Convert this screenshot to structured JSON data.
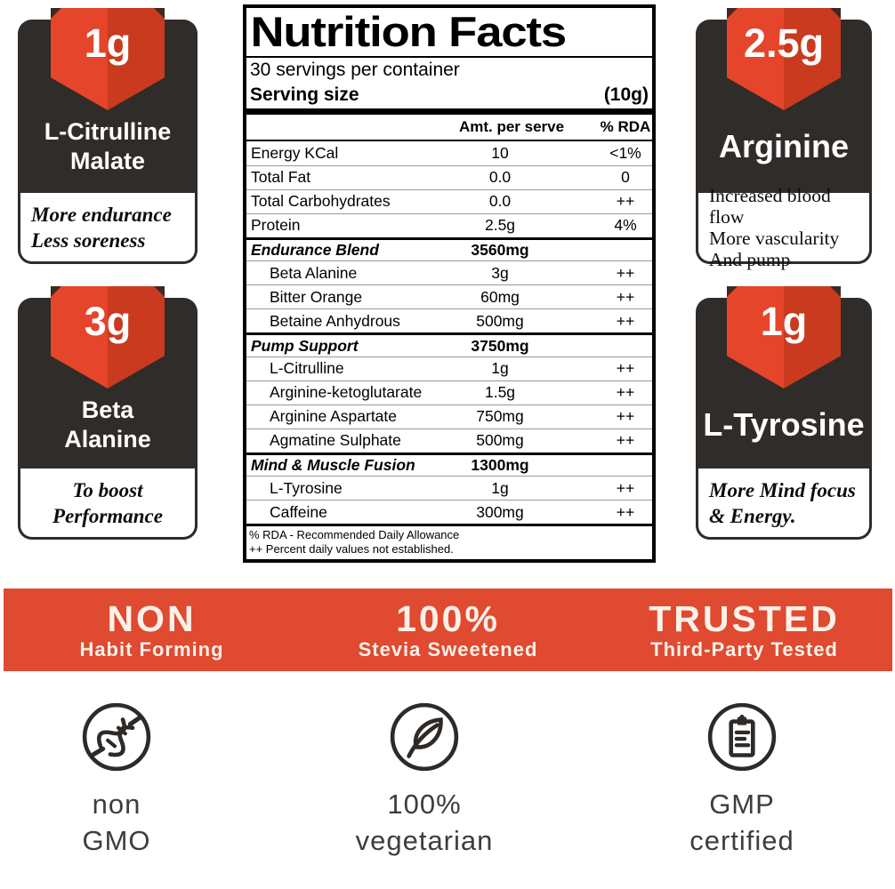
{
  "label": {
    "title": "Nutrition Facts",
    "servings": "30 servings per container",
    "serving_size_label": "Serving size",
    "serving_size_value": "(10g)",
    "col_amount": "Amt. per serve",
    "col_rda": "% RDA",
    "rows": [
      {
        "type": "nutrient",
        "name": "Energy KCal",
        "amount": "10",
        "rda": "<1%"
      },
      {
        "type": "nutrient",
        "name": "Total Fat",
        "amount": "0.0",
        "rda": "0"
      },
      {
        "type": "nutrient",
        "name": "Total Carbohydrates",
        "amount": "0.0",
        "rda": "++"
      },
      {
        "type": "nutrient",
        "name": "Protein",
        "amount": "2.5g",
        "rda": "4%"
      },
      {
        "type": "section",
        "name": "Endurance Blend",
        "amount": "3560mg",
        "rda": ""
      },
      {
        "type": "sub",
        "name": "Beta Alanine",
        "amount": "3g",
        "rda": "++"
      },
      {
        "type": "sub",
        "name": "Bitter Orange",
        "amount": "60mg",
        "rda": "++"
      },
      {
        "type": "sub",
        "name": "Betaine Anhydrous",
        "amount": "500mg",
        "rda": "++"
      },
      {
        "type": "section",
        "name": "Pump Support",
        "amount": "3750mg",
        "rda": ""
      },
      {
        "type": "sub",
        "name": "L-Citrulline",
        "amount": "1g",
        "rda": "++"
      },
      {
        "type": "sub",
        "name": "Arginine-ketoglutarate",
        "amount": "1.5g",
        "rda": "++"
      },
      {
        "type": "sub",
        "name": "Arginine Aspartate",
        "amount": "750mg",
        "rda": "++"
      },
      {
        "type": "sub",
        "name": "Agmatine Sulphate",
        "amount": "500mg",
        "rda": "++"
      },
      {
        "type": "section",
        "name": "Mind & Muscle Fusion",
        "amount": "1300mg",
        "rda": ""
      },
      {
        "type": "sub",
        "name": "L-Tyrosine",
        "amount": "1g",
        "rda": "++"
      },
      {
        "type": "sub",
        "name": "Caffeine",
        "amount": "300mg",
        "rda": "++"
      }
    ],
    "footnotes": [
      "% RDA - Recommended Daily Allowance",
      "++ Percent daily values not established."
    ]
  },
  "badges": [
    {
      "amount": "1g",
      "name_lines": [
        "L-Citrulline",
        "Malate"
      ],
      "desc_lines": [
        "More endurance",
        "Less soreness"
      ],
      "desc_style": "bold-italic",
      "desc_align": "left"
    },
    {
      "amount": "3g",
      "name_lines": [
        "Beta",
        "Alanine"
      ],
      "desc_lines": [
        "To boost",
        "Performance"
      ],
      "desc_style": "bold-italic",
      "desc_align": "center"
    },
    {
      "amount": "2.5g",
      "name_lines": [
        "Arginine"
      ],
      "desc_lines": [
        "Increased blood flow",
        "More vascularity",
        "And pump"
      ],
      "desc_style": "regular",
      "desc_align": "left"
    },
    {
      "amount": "1g",
      "name_lines": [
        "L-Tyrosine"
      ],
      "desc_lines": [
        "More Mind focus",
        "& Energy."
      ],
      "desc_style": "bold-italic",
      "desc_align": "left"
    }
  ],
  "banner": {
    "background": "#DF4A30",
    "items": [
      {
        "title": "NON",
        "subtitle": "Habit Forming"
      },
      {
        "title": "100%",
        "subtitle": "Stevia Sweetened"
      },
      {
        "title": "TRUSTED",
        "subtitle": "Third-Party Tested"
      }
    ]
  },
  "features": [
    {
      "icon": "non-gmo-dna-icon",
      "lines": [
        "non",
        "GMO"
      ]
    },
    {
      "icon": "vegetarian-leaf-icon",
      "lines": [
        "100%",
        "vegetarian"
      ]
    },
    {
      "icon": "gmp-clipboard-icon",
      "lines": [
        "GMP",
        "certified"
      ]
    }
  ],
  "colors": {
    "ribbon_red": "#E5452A",
    "ribbon_red_dark": "#C93A1F",
    "banner_red": "#DF4A30",
    "badge_dark": "#302C29",
    "icon_ink": "#2E2A27",
    "feature_text": "#3F3D3A"
  }
}
